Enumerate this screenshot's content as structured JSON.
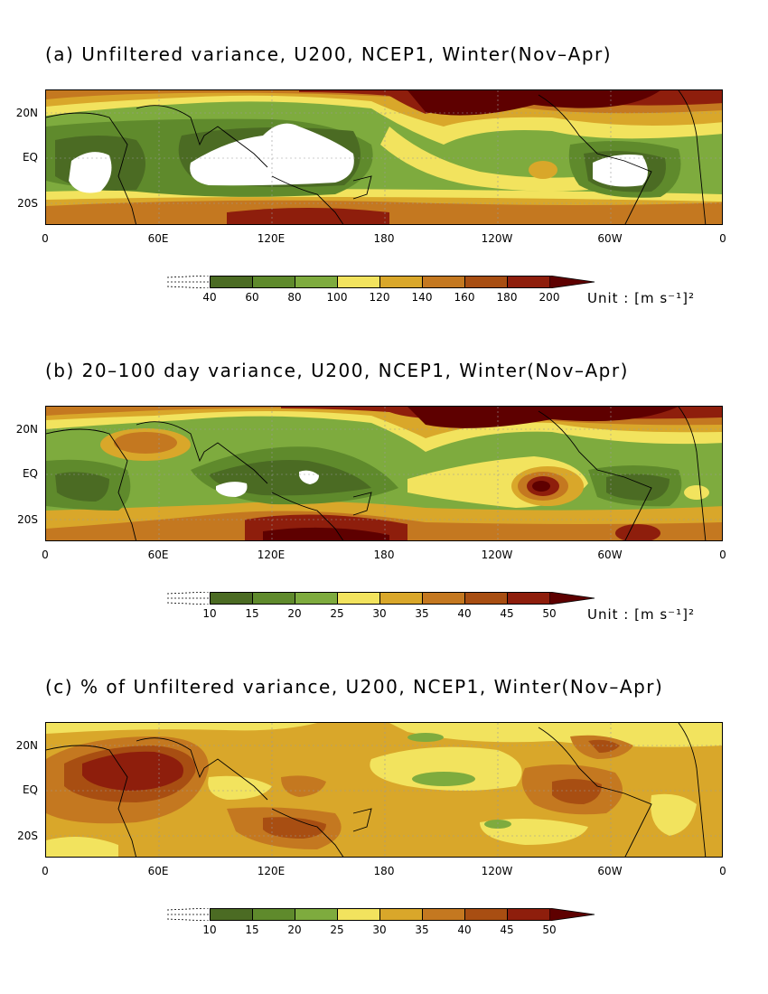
{
  "colors": {
    "palette": [
      "#4b6b23",
      "#5f8a2c",
      "#7eab3e",
      "#f2e35e",
      "#d9a72a",
      "#c47820",
      "#a84e12",
      "#8e1e0c",
      "#5e0000"
    ],
    "missing": "#ffffff"
  },
  "axes": {
    "lat_labels": [
      "20N",
      "EQ",
      "20S"
    ],
    "lon_labels": [
      "0",
      "60E",
      "120E",
      "180",
      "120W",
      "60W",
      "0"
    ]
  },
  "panels": [
    {
      "id": "a",
      "title": "(a) Unfiltered variance, U200, NCEP1, Winter(Nov–Apr)",
      "colorbar_ticks": [
        "40",
        "60",
        "80",
        "100",
        "120",
        "140",
        "160",
        "180",
        "200"
      ],
      "unit_label": "Unit : [m s⁻¹]²"
    },
    {
      "id": "b",
      "title": "(b) 20–100 day variance, U200, NCEP1, Winter(Nov–Apr)",
      "colorbar_ticks": [
        "10",
        "15",
        "20",
        "25",
        "30",
        "35",
        "40",
        "45",
        "50"
      ],
      "unit_label": "Unit : [m s⁻¹]²"
    },
    {
      "id": "c",
      "title": "(c) % of Unfiltered variance, U200, NCEP1, Winter(Nov–Apr)",
      "colorbar_ticks": [
        "10",
        "15",
        "20",
        "25",
        "30",
        "35",
        "40",
        "45",
        "50"
      ],
      "unit_label": ""
    }
  ]
}
